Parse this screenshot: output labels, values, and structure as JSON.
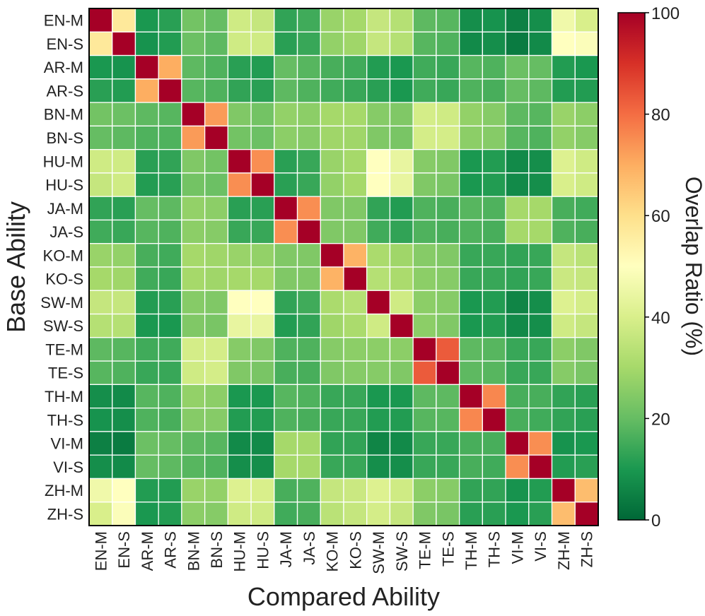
{
  "chart_data": {
    "type": "heatmap",
    "title": "",
    "xlabel": "Compared Ability",
    "ylabel": "Base Ability",
    "categories": [
      "EN-M",
      "EN-S",
      "AR-M",
      "AR-S",
      "BN-M",
      "BN-S",
      "HU-M",
      "HU-S",
      "JA-M",
      "JA-S",
      "KO-M",
      "KO-S",
      "SW-M",
      "SW-S",
      "TE-M",
      "TE-S",
      "TH-M",
      "TH-S",
      "VI-M",
      "VI-S",
      "ZH-M",
      "ZH-S"
    ],
    "rows": [
      "EN-M",
      "EN-S",
      "AR-M",
      "AR-S",
      "BN-M",
      "BN-S",
      "HU-M",
      "HU-S",
      "JA-M",
      "JA-S",
      "KO-M",
      "KO-S",
      "SW-M",
      "SW-S",
      "TE-M",
      "TE-S",
      "TH-M",
      "TH-S",
      "VI-M",
      "VI-S",
      "ZH-M",
      "ZH-S"
    ],
    "values": [
      [
        100,
        57,
        10,
        12,
        22,
        20,
        38,
        36,
        13,
        15,
        28,
        30,
        36,
        33,
        19,
        18,
        8,
        9,
        5,
        8,
        46,
        40
      ],
      [
        57,
        100,
        9,
        11,
        21,
        19,
        38,
        38,
        12,
        14,
        27,
        29,
        36,
        33,
        18,
        17,
        7,
        8,
        4,
        7,
        50,
        49
      ],
      [
        10,
        9,
        100,
        70,
        19,
        17,
        12,
        11,
        20,
        18,
        16,
        15,
        11,
        10,
        15,
        14,
        18,
        17,
        21,
        20,
        11,
        10
      ],
      [
        12,
        11,
        70,
        100,
        18,
        17,
        13,
        12,
        19,
        17,
        15,
        14,
        12,
        10,
        15,
        14,
        17,
        16,
        20,
        19,
        11,
        11
      ],
      [
        22,
        21,
        19,
        18,
        100,
        73,
        24,
        22,
        27,
        26,
        30,
        30,
        25,
        24,
        39,
        38,
        27,
        25,
        19,
        18,
        28,
        26
      ],
      [
        20,
        19,
        17,
        17,
        73,
        100,
        22,
        21,
        26,
        25,
        29,
        29,
        24,
        23,
        39,
        39,
        26,
        25,
        18,
        17,
        27,
        25
      ],
      [
        38,
        38,
        12,
        13,
        24,
        22,
        100,
        75,
        12,
        14,
        28,
        30,
        50,
        44,
        25,
        24,
        10,
        11,
        7,
        8,
        41,
        38
      ],
      [
        36,
        38,
        11,
        12,
        22,
        21,
        75,
        100,
        12,
        14,
        27,
        30,
        50,
        44,
        24,
        23,
        10,
        11,
        7,
        8,
        40,
        38
      ],
      [
        13,
        12,
        20,
        19,
        27,
        26,
        12,
        12,
        100,
        75,
        24,
        24,
        13,
        11,
        17,
        16,
        18,
        17,
        30,
        30,
        16,
        15
      ],
      [
        15,
        14,
        18,
        17,
        26,
        25,
        14,
        14,
        75,
        100,
        24,
        24,
        15,
        13,
        17,
        16,
        17,
        16,
        30,
        30,
        17,
        16
      ],
      [
        28,
        27,
        16,
        15,
        30,
        29,
        28,
        27,
        24,
        24,
        100,
        69,
        31,
        29,
        25,
        24,
        14,
        14,
        13,
        14,
        36,
        34
      ],
      [
        30,
        29,
        15,
        14,
        30,
        29,
        30,
        30,
        24,
        24,
        69,
        100,
        33,
        31,
        26,
        25,
        14,
        14,
        13,
        14,
        37,
        36
      ],
      [
        36,
        36,
        11,
        12,
        25,
        24,
        50,
        50,
        13,
        15,
        31,
        33,
        100,
        38,
        26,
        25,
        10,
        11,
        6,
        8,
        41,
        39
      ],
      [
        33,
        33,
        10,
        10,
        24,
        23,
        44,
        44,
        11,
        13,
        29,
        31,
        38,
        100,
        26,
        24,
        10,
        11,
        7,
        8,
        38,
        36
      ],
      [
        19,
        18,
        15,
        15,
        39,
        39,
        25,
        24,
        17,
        17,
        25,
        26,
        26,
        26,
        100,
        83,
        19,
        18,
        14,
        14,
        26,
        24
      ],
      [
        18,
        17,
        14,
        14,
        38,
        39,
        24,
        23,
        16,
        16,
        24,
        25,
        25,
        24,
        83,
        100,
        19,
        18,
        14,
        14,
        25,
        23
      ],
      [
        8,
        7,
        18,
        17,
        27,
        26,
        10,
        10,
        18,
        17,
        14,
        14,
        10,
        10,
        19,
        19,
        100,
        76,
        16,
        16,
        13,
        12
      ],
      [
        9,
        8,
        17,
        16,
        25,
        25,
        11,
        11,
        17,
        16,
        14,
        14,
        11,
        11,
        18,
        18,
        76,
        100,
        16,
        15,
        13,
        12
      ],
      [
        5,
        4,
        21,
        20,
        19,
        18,
        7,
        7,
        30,
        30,
        13,
        13,
        6,
        7,
        14,
        14,
        16,
        16,
        100,
        75,
        9,
        10
      ],
      [
        8,
        7,
        20,
        19,
        18,
        17,
        8,
        8,
        30,
        30,
        14,
        14,
        8,
        8,
        14,
        14,
        16,
        15,
        75,
        100,
        11,
        12
      ],
      [
        46,
        50,
        11,
        11,
        28,
        27,
        41,
        40,
        16,
        17,
        36,
        37,
        41,
        38,
        26,
        25,
        13,
        13,
        9,
        11,
        100,
        67
      ],
      [
        40,
        49,
        10,
        11,
        26,
        25,
        38,
        38,
        15,
        16,
        34,
        36,
        39,
        36,
        24,
        23,
        12,
        12,
        10,
        12,
        67,
        100
      ]
    ],
    "colorbar": {
      "colormap": "RdYlGn_r",
      "range": [
        0,
        100
      ],
      "ticks": [
        "0",
        "20",
        "40",
        "60",
        "80",
        "100"
      ],
      "label": "Overlap Ratio (%)"
    },
    "grid": true
  }
}
